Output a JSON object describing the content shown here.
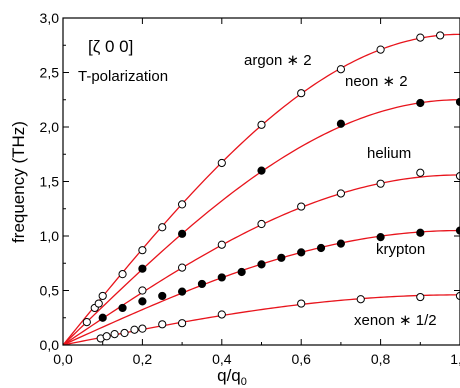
{
  "chart_data": {
    "type": "scatter",
    "xlabel_main": "q/q",
    "xlabel_sub": "0",
    "ylabel": "frequency  (THz)",
    "xlim": [
      0.0,
      1.0
    ],
    "ylim": [
      0.0,
      3.0
    ],
    "xticks": [
      "0,0",
      "0,2",
      "0,4",
      "0,6",
      "0,8",
      "1,0"
    ],
    "yticks": [
      "0,0",
      "0,5",
      "1,0",
      "1,5",
      "2,0",
      "2,5",
      "3,0"
    ],
    "xtick_values": [
      0.0,
      0.2,
      0.4,
      0.6,
      0.8,
      1.0
    ],
    "ytick_values": [
      0.0,
      0.5,
      1.0,
      1.5,
      2.0,
      2.5,
      3.0
    ],
    "annotation_direction": "[ζ 0 0]",
    "annotation_polarization": "T-polarization",
    "curve_color": "#e8141c",
    "series": [
      {
        "name": "argon ∗ 2",
        "marker": "open",
        "amplitude": 2.85,
        "points": [
          [
            0.06,
            0.21
          ],
          [
            0.08,
            0.34
          ],
          [
            0.09,
            0.38
          ],
          [
            0.1,
            0.45
          ],
          [
            0.15,
            0.65
          ],
          [
            0.2,
            0.87
          ],
          [
            0.25,
            1.08
          ],
          [
            0.3,
            1.29
          ],
          [
            0.4,
            1.67
          ],
          [
            0.5,
            2.02
          ],
          [
            0.6,
            2.31
          ],
          [
            0.7,
            2.53
          ],
          [
            0.8,
            2.71
          ],
          [
            0.9,
            2.82
          ],
          [
            0.95,
            2.84
          ]
        ]
      },
      {
        "name": "neon ∗ 2",
        "marker": "filled",
        "amplitude": 2.25,
        "points": [
          [
            0.2,
            0.7
          ],
          [
            0.3,
            1.02
          ],
          [
            0.5,
            1.6
          ],
          [
            0.7,
            2.03
          ],
          [
            0.9,
            2.22
          ],
          [
            1.0,
            2.23
          ]
        ]
      },
      {
        "name": "helium",
        "marker": "open",
        "amplitude": 1.56,
        "points": [
          [
            0.2,
            0.5
          ],
          [
            0.3,
            0.71
          ],
          [
            0.4,
            0.92
          ],
          [
            0.5,
            1.11
          ],
          [
            0.6,
            1.27
          ],
          [
            0.7,
            1.39
          ],
          [
            0.8,
            1.48
          ],
          [
            0.9,
            1.58
          ],
          [
            1.0,
            1.55
          ]
        ]
      },
      {
        "name": "krypton",
        "marker": "filled",
        "amplitude": 1.05,
        "points": [
          [
            0.1,
            0.25
          ],
          [
            0.15,
            0.34
          ],
          [
            0.2,
            0.4
          ],
          [
            0.25,
            0.45
          ],
          [
            0.3,
            0.49
          ],
          [
            0.35,
            0.56
          ],
          [
            0.4,
            0.62
          ],
          [
            0.45,
            0.67
          ],
          [
            0.5,
            0.74
          ],
          [
            0.55,
            0.8
          ],
          [
            0.6,
            0.85
          ],
          [
            0.65,
            0.89
          ],
          [
            0.7,
            0.93
          ],
          [
            0.8,
            0.99
          ],
          [
            0.9,
            1.03
          ],
          [
            1.0,
            1.05
          ]
        ]
      },
      {
        "name": "xenon ∗ 1/2",
        "marker": "open",
        "amplitude": 0.46,
        "points": [
          [
            0.095,
            0.06
          ],
          [
            0.11,
            0.08
          ],
          [
            0.13,
            0.1
          ],
          [
            0.155,
            0.11
          ],
          [
            0.18,
            0.14
          ],
          [
            0.2,
            0.15
          ],
          [
            0.25,
            0.19
          ],
          [
            0.3,
            0.2
          ],
          [
            0.4,
            0.28
          ],
          [
            0.6,
            0.38
          ],
          [
            0.75,
            0.42
          ],
          [
            0.9,
            0.44
          ],
          [
            1.0,
            0.45
          ]
        ]
      }
    ]
  }
}
